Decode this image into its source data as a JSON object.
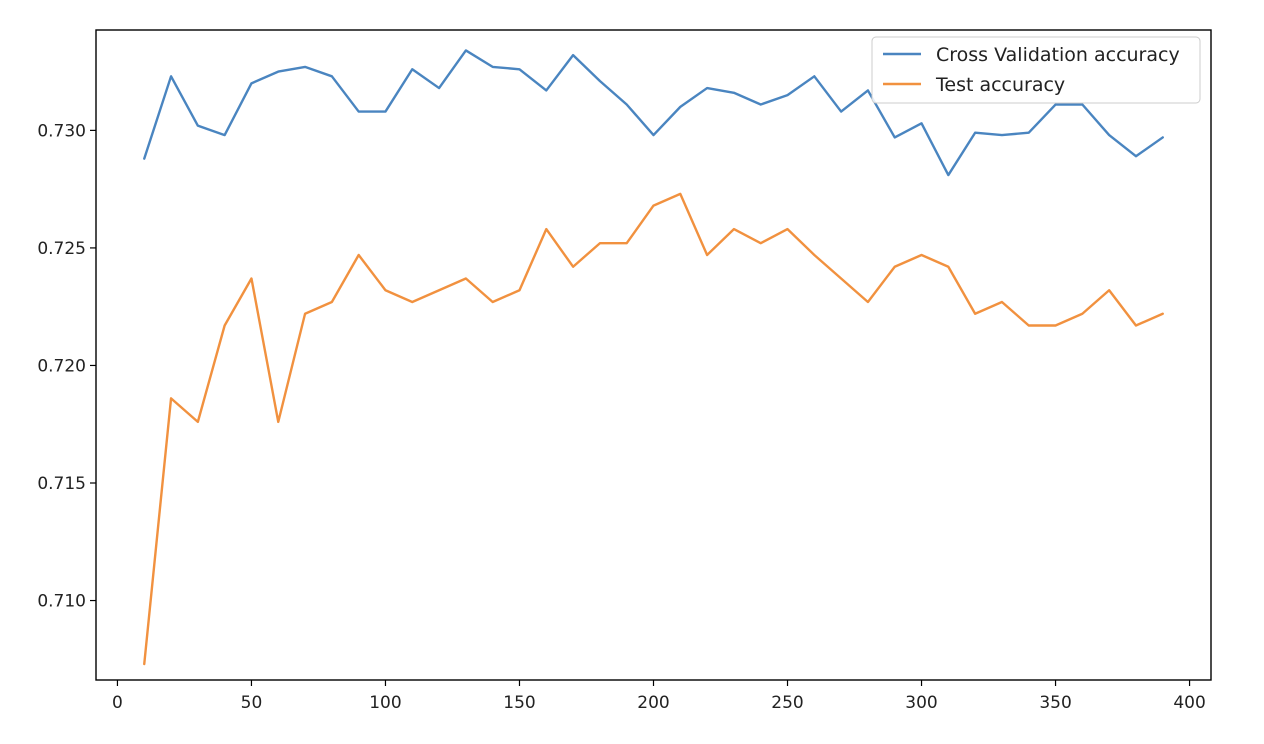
{
  "chart_data": {
    "type": "line",
    "title": "",
    "xlabel": "",
    "ylabel": "",
    "xlim": [
      -8,
      408
    ],
    "ylim": [
      0.70662,
      0.73427
    ],
    "xticks": [
      0,
      50,
      100,
      150,
      200,
      250,
      300,
      350,
      400
    ],
    "xtick_labels": [
      "0",
      "50",
      "100",
      "150",
      "200",
      "250",
      "300",
      "350",
      "400"
    ],
    "yticks": [
      0.71,
      0.715,
      0.72,
      0.725,
      0.73
    ],
    "ytick_labels": [
      "0.710",
      "0.715",
      "0.720",
      "0.725",
      "0.730"
    ],
    "grid": false,
    "legend_position": "top-right",
    "x": [
      10,
      20,
      30,
      40,
      50,
      60,
      70,
      80,
      90,
      100,
      110,
      120,
      130,
      140,
      150,
      160,
      170,
      180,
      190,
      200,
      210,
      220,
      230,
      240,
      250,
      260,
      270,
      280,
      290,
      300,
      310,
      320,
      330,
      340,
      350,
      360,
      370,
      380,
      390
    ],
    "series": [
      {
        "name": "Cross Validation accuracy",
        "color": "#4a85c0",
        "values": [
          0.7288,
          0.7323,
          0.7302,
          0.7298,
          0.732,
          0.7325,
          0.7327,
          0.7323,
          0.7308,
          0.7308,
          0.7326,
          0.7318,
          0.7334,
          0.7327,
          0.7326,
          0.7317,
          0.7332,
          0.7321,
          0.7311,
          0.7298,
          0.731,
          0.7318,
          0.7316,
          0.7311,
          0.7315,
          0.7323,
          0.7308,
          0.7317,
          0.7297,
          0.7303,
          0.7281,
          0.7299,
          0.7298,
          0.7299,
          0.7311,
          0.7311,
          0.7298,
          0.7289,
          0.7297
        ]
      },
      {
        "name": "Test accuracy",
        "color": "#f1913f",
        "values": [
          0.7073,
          0.7186,
          0.7176,
          0.7217,
          0.7237,
          0.7176,
          0.7222,
          0.7227,
          0.7247,
          0.7232,
          0.7227,
          0.7232,
          0.7237,
          0.7227,
          0.7232,
          0.7258,
          0.7242,
          0.7252,
          0.7252,
          0.7268,
          0.7273,
          0.7247,
          0.7258,
          0.7252,
          0.7258,
          0.7247,
          0.7237,
          0.7227,
          0.7242,
          0.7247,
          0.7242,
          0.7222,
          0.7227,
          0.7217,
          0.7217,
          0.7222,
          0.7232,
          0.7217,
          0.7222
        ]
      }
    ]
  }
}
